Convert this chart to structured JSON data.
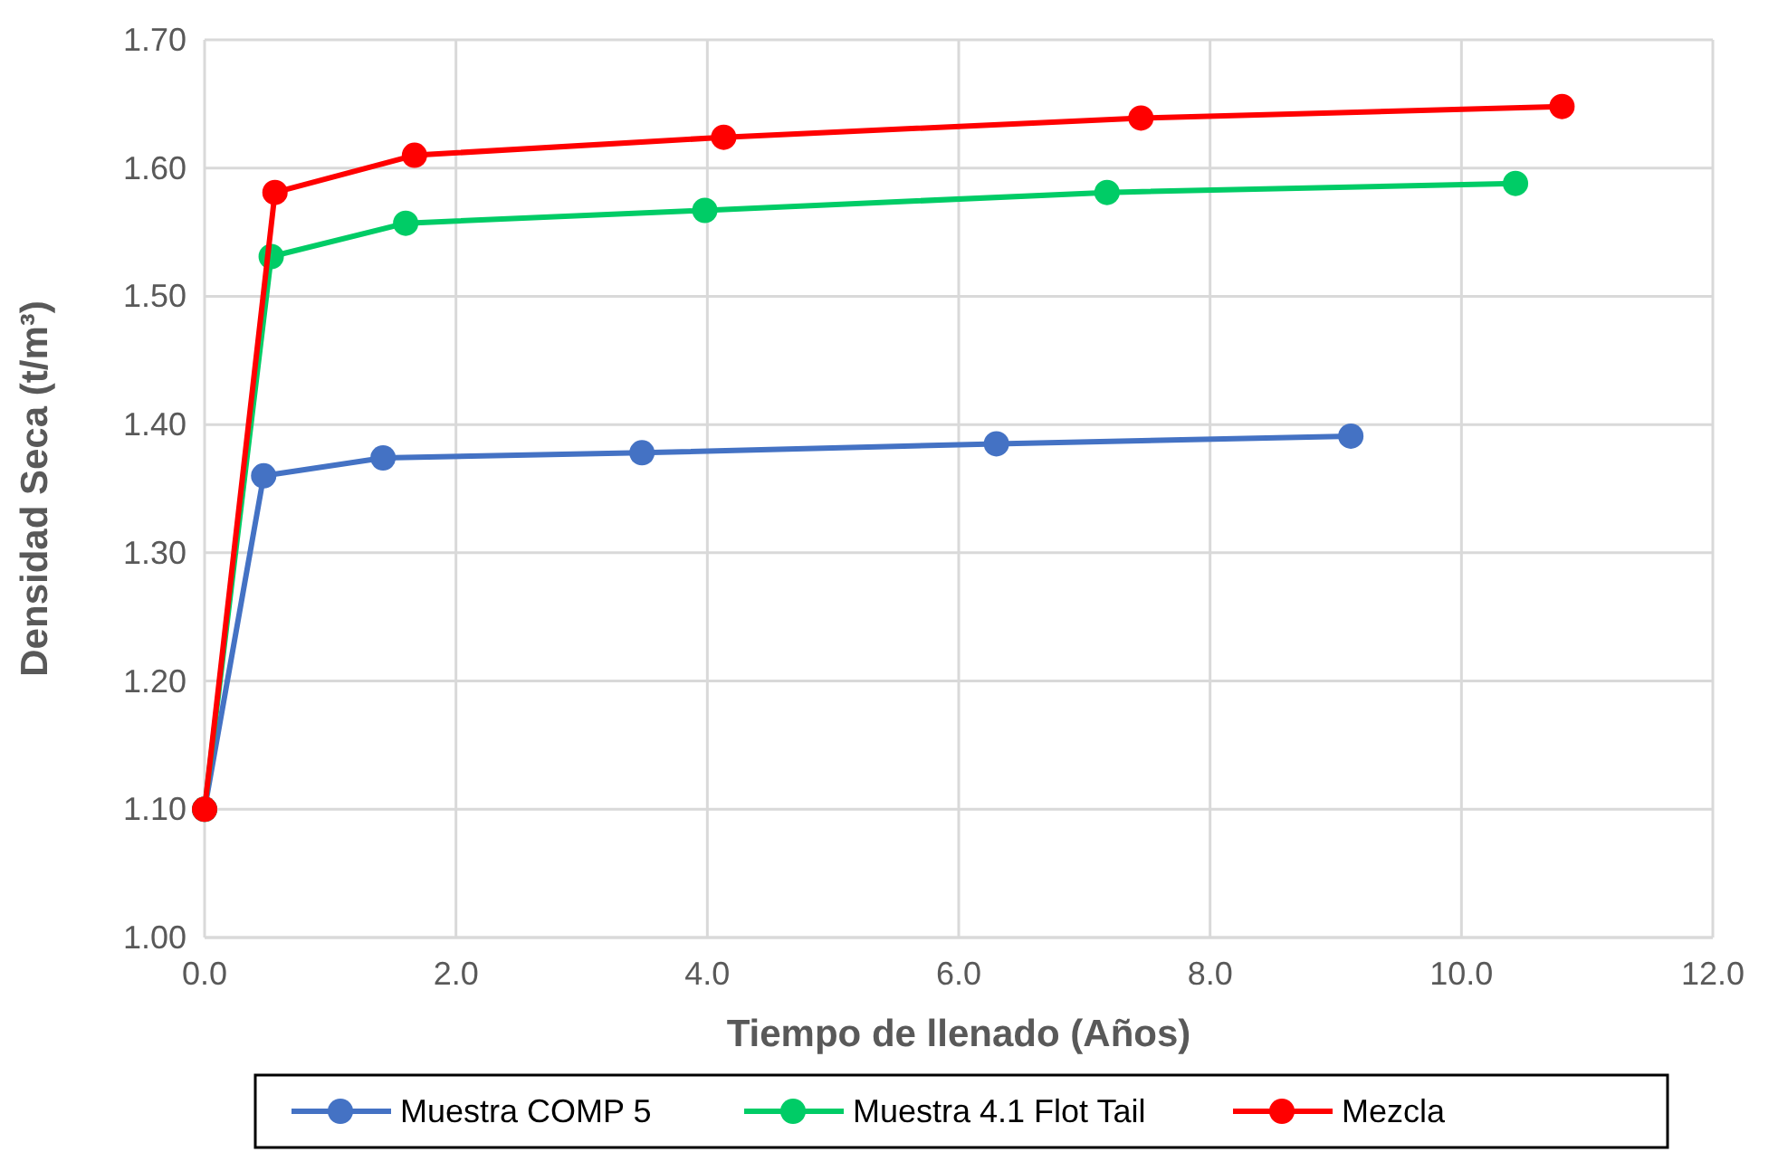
{
  "chart_data": {
    "type": "line",
    "xlabel": "Tiempo de llenado (Años)",
    "ylabel": "Densidad Seca (t/m³)",
    "xlim": [
      0,
      12
    ],
    "xticks": [
      {
        "value": 0,
        "label": "0.0"
      },
      {
        "value": 2,
        "label": "2.0"
      },
      {
        "value": 4,
        "label": "4.0"
      },
      {
        "value": 6,
        "label": "6.0"
      },
      {
        "value": 8,
        "label": "8.0"
      },
      {
        "value": 10,
        "label": "10.0"
      },
      {
        "value": 12,
        "label": "12.0"
      }
    ],
    "ylim": [
      1,
      1.7
    ],
    "yticks": [
      {
        "value": 1,
        "label": "1.00"
      },
      {
        "value": 1.1,
        "label": "1.10"
      },
      {
        "value": 1.2,
        "label": "1.20"
      },
      {
        "value": 1.3,
        "label": "1.30"
      },
      {
        "value": 1.4,
        "label": "1.40"
      },
      {
        "value": 1.5,
        "label": "1.50"
      },
      {
        "value": 1.6,
        "label": "1.60"
      },
      {
        "value": 1.7,
        "label": "1.70"
      }
    ],
    "grid": true,
    "legend": "bottom",
    "marker": "circle",
    "line_style": "solid",
    "series": [
      {
        "name": "Muestra COMP 5",
        "color": "#4472c4",
        "x": [
          0,
          0.47,
          1.42,
          3.48,
          6.3,
          9.12
        ],
        "values": [
          1.1,
          1.36,
          1.374,
          1.378,
          1.385,
          1.391
        ]
      },
      {
        "name": "Muestra 4.1 Flot Tail",
        "color": "#00cc66",
        "x": [
          0,
          0.53,
          1.6,
          3.98,
          7.18,
          10.43
        ],
        "values": [
          1.1,
          1.531,
          1.557,
          1.567,
          1.581,
          1.588
        ]
      },
      {
        "name": "Mezcla",
        "color": "#ff0000",
        "x": [
          0,
          0.56,
          1.67,
          4.13,
          7.45,
          10.8
        ],
        "values": [
          1.1,
          1.581,
          1.61,
          1.624,
          1.639,
          1.648
        ]
      }
    ]
  }
}
